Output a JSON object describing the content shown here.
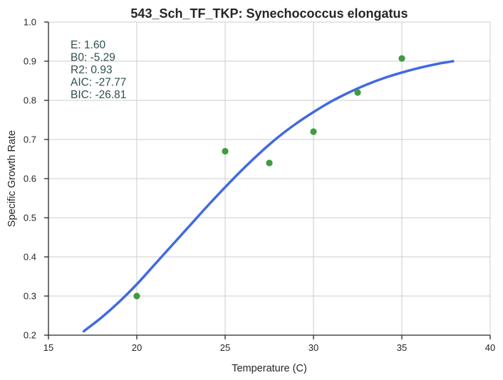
{
  "chart_data": {
    "type": "scatter",
    "title": "543_Sch_TF_TKP: Synechococcus elongatus",
    "xlabel": "Temperature (C)",
    "ylabel": "Specific Growth Rate",
    "xlim": [
      15,
      40
    ],
    "ylim": [
      0.2,
      1.0
    ],
    "x_ticks": [
      "15",
      "20",
      "25",
      "30",
      "35",
      "40"
    ],
    "y_ticks": [
      "0.2",
      "0.3",
      "0.4",
      "0.5",
      "0.6",
      "0.7",
      "0.8",
      "0.9",
      "1.0"
    ],
    "grid": true,
    "series": [
      {
        "type": "scatter",
        "color": "#3f9c3f",
        "x": [
          20,
          25,
          27.5,
          30,
          32.5,
          35
        ],
        "y": [
          0.3,
          0.67,
          0.64,
          0.72,
          0.82,
          0.907
        ]
      },
      {
        "type": "line",
        "color": "#4169e1",
        "x": [
          17,
          18,
          19,
          20,
          21,
          22,
          23,
          24,
          25,
          26,
          27,
          28,
          29,
          30,
          31,
          32,
          33,
          34,
          35,
          36,
          37,
          37.9
        ],
        "y": [
          0.21,
          0.245,
          0.285,
          0.33,
          0.38,
          0.43,
          0.48,
          0.53,
          0.578,
          0.624,
          0.667,
          0.706,
          0.74,
          0.77,
          0.797,
          0.82,
          0.84,
          0.857,
          0.871,
          0.883,
          0.893,
          0.9
        ]
      }
    ],
    "annotations": [
      "E:  1.60",
      "B0:  -5.29",
      "R2:  0.93",
      "AIC: -27.77",
      "BIC: -26.81"
    ],
    "annotation_color": "#2f4f4f"
  }
}
